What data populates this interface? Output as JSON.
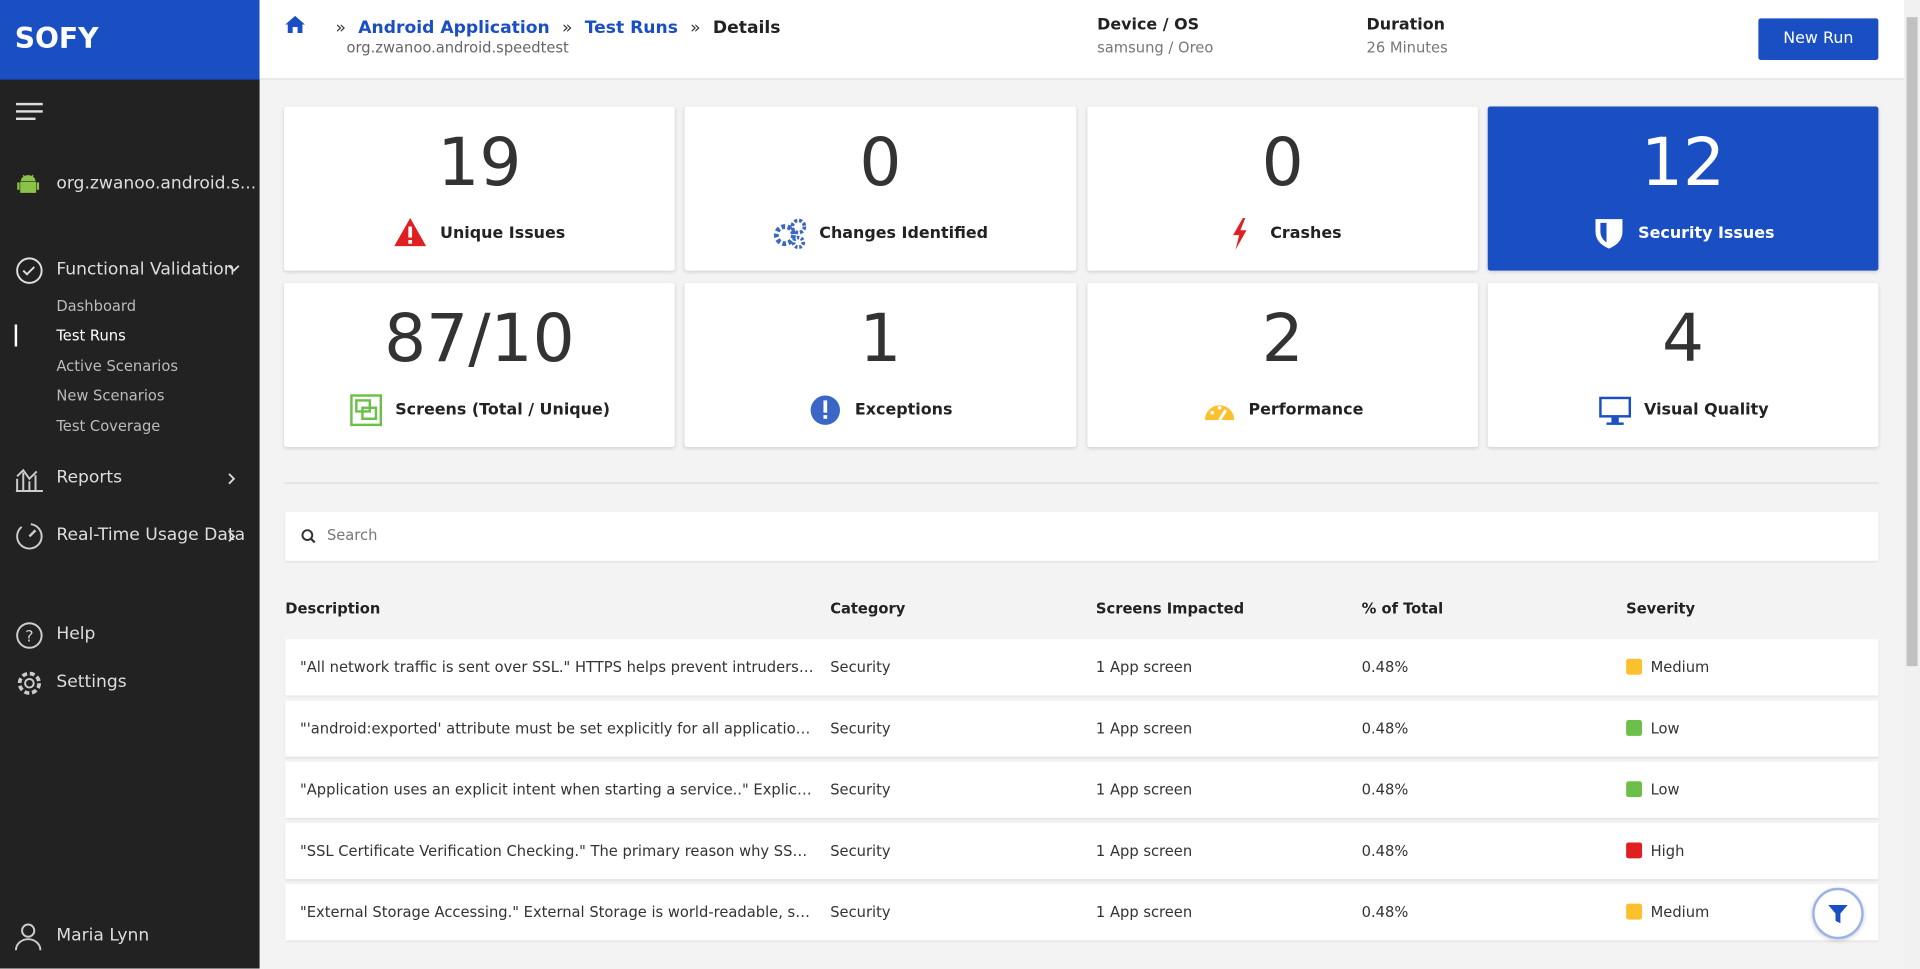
{
  "sidebar": {
    "brand": "SOFY",
    "app": "org.zwanoo.android.s...",
    "section": "Functional Validation",
    "subitems": [
      "Dashboard",
      "Test Runs",
      "Active Scenarios",
      "New Scenarios",
      "Test Coverage"
    ],
    "nav": [
      "Reports",
      "Real-Time Usage Data",
      "Help",
      "Settings"
    ],
    "user": "Maria Lynn"
  },
  "header": {
    "breadcrumb": [
      "Android Application",
      "Test Runs",
      "Details"
    ],
    "subtitle": "org.zwanoo.android.speedtest",
    "device": {
      "label": "Device / OS",
      "value": "samsung / Oreo"
    },
    "duration": {
      "label": "Duration",
      "value": "26 Minutes"
    },
    "button": "New Run"
  },
  "cards": [
    {
      "value": "19",
      "label": "Unique Issues"
    },
    {
      "value": "0",
      "label": "Changes Identified"
    },
    {
      "value": "0",
      "label": "Crashes"
    },
    {
      "value": "12",
      "label": "Security Issues"
    },
    {
      "value": "87/10",
      "label": "Screens (Total / Unique)"
    },
    {
      "value": "1",
      "label": "Exceptions"
    },
    {
      "value": "2",
      "label": "Performance"
    },
    {
      "value": "4",
      "label": "Visual Quality"
    }
  ],
  "search": {
    "placeholder": "Search"
  },
  "table": {
    "columns": [
      "Description",
      "Category",
      "Screens Impacted",
      "% of Total",
      "Severity"
    ],
    "rows": [
      {
        "cells": [
          "\"All network traffic is sent over SSL.\" HTTPS helps prevent intruders from tampering with communications",
          "Security",
          "1 App screen",
          "0.48%",
          "Medium"
        ],
        "color": "#fbc02d"
      },
      {
        "cells": [
          "\"'android:exported' attribute must be set explicitly for all application components",
          "Security",
          "1 App screen",
          "0.48%",
          "Low"
        ],
        "color": "#6cc04a"
      },
      {
        "cells": [
          "\"Application uses an explicit intent when starting a service..\" Explicit intents identify the component",
          "Security",
          "1 App screen",
          "0.48%",
          "Low"
        ],
        "color": "#6cc04a"
      },
      {
        "cells": [
          "\"SSL Certificate Verification Checking.\" The primary reason why SSL is used is to keep data secure",
          "Security",
          "1 App screen",
          "0.48%",
          "High"
        ],
        "color": "#e02020"
      },
      {
        "cells": [
          "\"External Storage Accessing.\" External Storage is world-readable, so files saved there",
          "Security",
          "1 App screen",
          "0.48%",
          "Medium"
        ],
        "color": "#fbc02d"
      }
    ]
  }
}
